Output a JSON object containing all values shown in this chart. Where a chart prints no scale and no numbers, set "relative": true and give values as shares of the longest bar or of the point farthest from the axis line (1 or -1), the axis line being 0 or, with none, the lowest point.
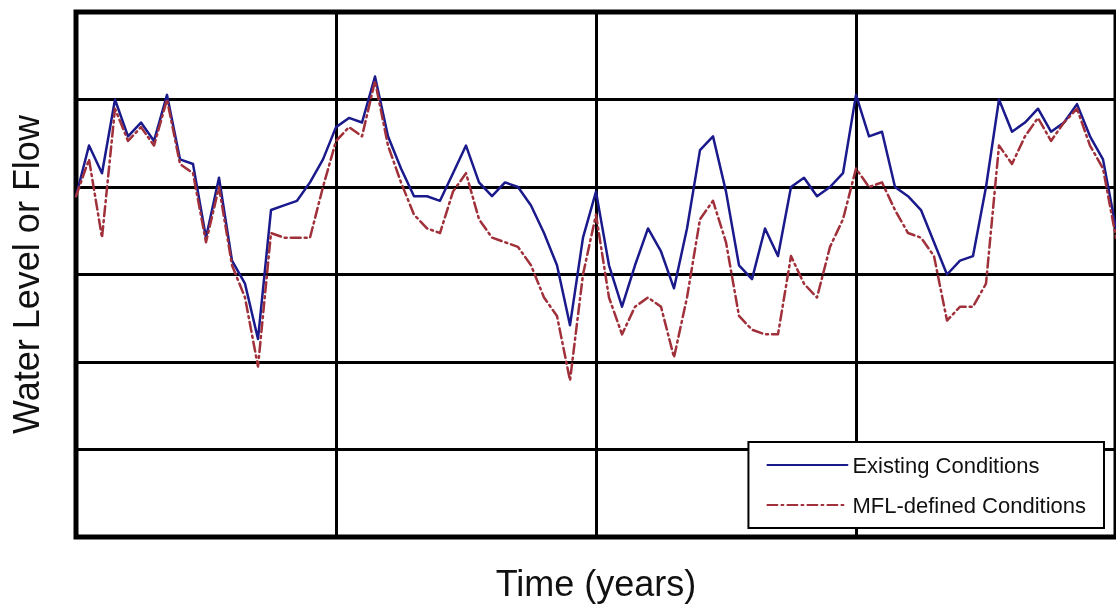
{
  "chart_data": {
    "type": "line",
    "relative": true,
    "xlabel": "Time (years)",
    "ylabel": "Water Level or Flow",
    "grid": true,
    "legend": "bottom right",
    "tick_labels": false,
    "marker": "none",
    "categories": [
      null,
      null,
      null,
      null,
      null,
      null,
      null,
      null,
      null,
      null,
      null,
      null,
      null,
      null,
      null,
      null,
      null,
      null,
      null,
      null,
      null,
      null,
      null,
      null,
      null,
      null,
      null,
      null,
      null,
      null,
      null,
      null,
      null,
      null,
      null,
      null,
      null,
      null,
      null,
      null,
      null,
      null,
      null,
      null,
      null,
      null,
      null,
      null,
      null,
      null,
      null,
      null,
      null,
      null,
      null,
      null,
      null,
      null,
      null,
      null,
      null,
      null,
      null,
      null,
      null,
      null,
      null,
      null,
      null,
      null,
      null,
      null,
      null,
      null,
      null,
      null,
      null,
      null,
      null,
      null,
      null
    ],
    "series": [
      {
        "name": "Existing Conditions",
        "color": "#1a1a8c",
        "line_style": "solid",
        "values": [
          0.74,
          0.85,
          0.79,
          0.95,
          0.87,
          0.9,
          0.86,
          0.96,
          0.82,
          0.81,
          0.65,
          0.78,
          0.6,
          0.55,
          0.43,
          0.71,
          0.72,
          0.73,
          0.77,
          0.82,
          0.89,
          0.91,
          0.9,
          1,
          0.87,
          0.8,
          0.74,
          0.74,
          0.73,
          0.79,
          0.85,
          0.77,
          0.74,
          0.77,
          0.76,
          0.72,
          0.66,
          0.59,
          0.46,
          0.65,
          0.75,
          0.59,
          0.5,
          0.59,
          0.67,
          0.62,
          0.54,
          0.67,
          0.84,
          0.87,
          0.75,
          0.59,
          0.56,
          0.67,
          0.61,
          0.76,
          0.78,
          0.74,
          0.76,
          0.79,
          0.96,
          0.87,
          0.88,
          0.76,
          0.74,
          0.71,
          0.64,
          0.57,
          0.6,
          0.61,
          0.76,
          0.95,
          0.88,
          0.9,
          0.93,
          0.88,
          0.9,
          0.94,
          0.87,
          0.82,
          0.67
        ]
      },
      {
        "name": "MFL-defined Conditions",
        "color": "#a0303a",
        "line_style": "dashed",
        "values": [
          0.74,
          0.82,
          0.65,
          0.93,
          0.86,
          0.89,
          0.85,
          0.95,
          0.81,
          0.79,
          0.64,
          0.76,
          0.59,
          0.52,
          0.37,
          0.66,
          0.65,
          0.65,
          0.65,
          0.76,
          0.86,
          0.89,
          0.87,
          0.99,
          0.85,
          0.77,
          0.7,
          0.67,
          0.66,
          0.75,
          0.79,
          0.69,
          0.65,
          0.64,
          0.63,
          0.59,
          0.52,
          0.48,
          0.34,
          0.57,
          0.7,
          0.52,
          0.44,
          0.5,
          0.52,
          0.5,
          0.39,
          0.52,
          0.69,
          0.73,
          0.64,
          0.48,
          0.45,
          0.44,
          0.44,
          0.61,
          0.55,
          0.52,
          0.63,
          0.69,
          0.8,
          0.76,
          0.77,
          0.71,
          0.66,
          0.65,
          0.61,
          0.47,
          0.5,
          0.5,
          0.55,
          0.85,
          0.81,
          0.87,
          0.91,
          0.86,
          0.9,
          0.93,
          0.85,
          0.8,
          0.65
        ]
      }
    ]
  }
}
